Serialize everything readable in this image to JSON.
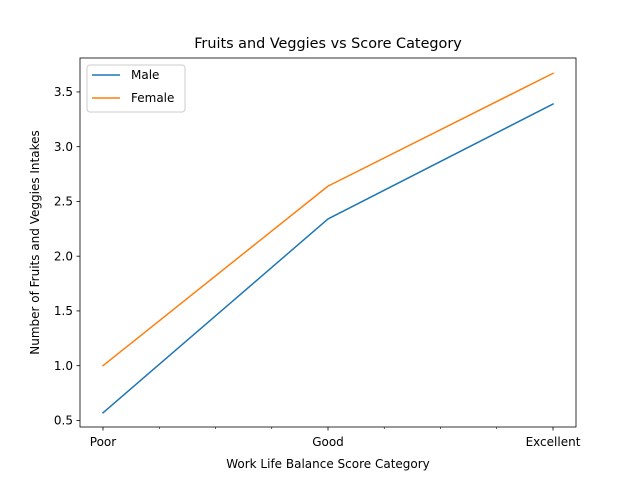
{
  "chart_data": {
    "type": "line",
    "title": "Fruits and Veggies vs Score Category",
    "xlabel": "Work Life Balance Score Category",
    "ylabel": "Number of Fruits and Veggies Intakes",
    "categories": [
      "Poor",
      "Good",
      "Excellent"
    ],
    "yticks": [
      0.5,
      1.0,
      1.5,
      2.0,
      2.5,
      3.0,
      3.5
    ],
    "ytick_labels": [
      "0.5",
      "1.0",
      "1.5",
      "2.0",
      "2.5",
      "3.0",
      "3.5"
    ],
    "ylim": [
      0.44,
      3.81
    ],
    "grid": false,
    "legend_position": "top-left",
    "series": [
      {
        "name": "Male",
        "color": "#1f77b4",
        "values": [
          0.57,
          2.34,
          3.39
        ]
      },
      {
        "name": "Female",
        "color": "#ff7f0e",
        "values": [
          1.0,
          2.64,
          3.67
        ]
      }
    ]
  }
}
